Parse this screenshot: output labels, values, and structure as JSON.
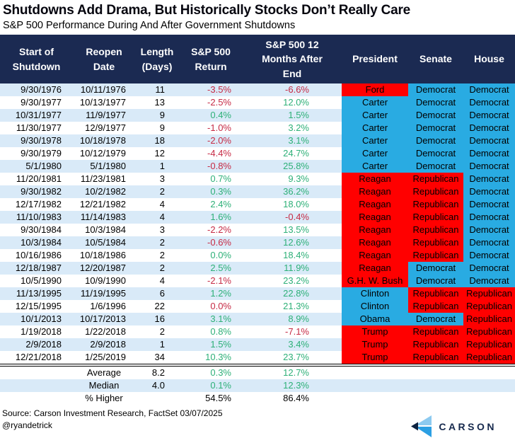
{
  "page": {
    "title": "Shutdowns Add Drama, But Historically Stocks Don’t Really Care",
    "subtitle": "S&P 500 Performance During And After Government Shutdowns",
    "source": "Source: Carson Investment Research, FactSet 03/07/2025",
    "handle": "@ryandetrick",
    "brand": "CARSON"
  },
  "colors": {
    "header_bg": "#1B2A52",
    "row_alt_bg": "#D9EAF8",
    "democrat_blue": "#29ABE2",
    "republican_red": "#FF0000",
    "positive_green": "#2EB078",
    "negative_red": "#C62B45",
    "logo_light": "#8CCAF0",
    "logo_blue": "#2B9FE3",
    "logo_navy": "#0D2240"
  },
  "chart_data": {
    "type": "table",
    "title": "Shutdowns Add Drama, But Historically Stocks Don’t Really Care",
    "subtitle": "S&P 500 Performance During And After Government Shutdowns",
    "columns": [
      "Start of\nShutdown",
      "Reopen\nDate",
      "Length\n(Days)",
      "S&P 500\nReturn",
      "S&P 500 12\nMonths After\nEnd",
      "President",
      "Senate",
      "House"
    ],
    "rows": [
      {
        "start": "9/30/1976",
        "reopen": "10/11/1976",
        "days": "11",
        "return": "-3.5%",
        "return_dir": "down",
        "after": "-6.6%",
        "after_dir": "down",
        "president": "Ford",
        "president_party": "R",
        "senate": "Democrat",
        "senate_party": "D",
        "house": "Democrat",
        "house_party": "D"
      },
      {
        "start": "9/30/1977",
        "reopen": "10/13/1977",
        "days": "13",
        "return": "-2.5%",
        "return_dir": "down",
        "after": "12.0%",
        "after_dir": "up",
        "president": "Carter",
        "president_party": "D",
        "senate": "Democrat",
        "senate_party": "D",
        "house": "Democrat",
        "house_party": "D"
      },
      {
        "start": "10/31/1977",
        "reopen": "11/9/1977",
        "days": "9",
        "return": "0.4%",
        "return_dir": "up",
        "after": "1.5%",
        "after_dir": "up",
        "president": "Carter",
        "president_party": "D",
        "senate": "Democrat",
        "senate_party": "D",
        "house": "Democrat",
        "house_party": "D"
      },
      {
        "start": "11/30/1977",
        "reopen": "12/9/1977",
        "days": "9",
        "return": "-1.0%",
        "return_dir": "down",
        "after": "3.2%",
        "after_dir": "up",
        "president": "Carter",
        "president_party": "D",
        "senate": "Democrat",
        "senate_party": "D",
        "house": "Democrat",
        "house_party": "D"
      },
      {
        "start": "9/30/1978",
        "reopen": "10/18/1978",
        "days": "18",
        "return": "-2.0%",
        "return_dir": "down",
        "after": "3.1%",
        "after_dir": "up",
        "president": "Carter",
        "president_party": "D",
        "senate": "Democrat",
        "senate_party": "D",
        "house": "Democrat",
        "house_party": "D"
      },
      {
        "start": "9/30/1979",
        "reopen": "10/12/1979",
        "days": "12",
        "return": "-4.4%",
        "return_dir": "down",
        "after": "24.7%",
        "after_dir": "up",
        "president": "Carter",
        "president_party": "D",
        "senate": "Democrat",
        "senate_party": "D",
        "house": "Democrat",
        "house_party": "D"
      },
      {
        "start": "5/1/1980",
        "reopen": "5/1/1980",
        "days": "1",
        "return": "-0.8%",
        "return_dir": "down",
        "after": "25.8%",
        "after_dir": "up",
        "president": "Carter",
        "president_party": "D",
        "senate": "Democrat",
        "senate_party": "D",
        "house": "Democrat",
        "house_party": "D"
      },
      {
        "start": "11/20/1981",
        "reopen": "11/23/1981",
        "days": "3",
        "return": "0.7%",
        "return_dir": "up",
        "after": "9.3%",
        "after_dir": "up",
        "president": "Reagan",
        "president_party": "R",
        "senate": "Republican",
        "senate_party": "R",
        "house": "Democrat",
        "house_party": "D"
      },
      {
        "start": "9/30/1982",
        "reopen": "10/2/1982",
        "days": "2",
        "return": "0.3%",
        "return_dir": "up",
        "after": "36.2%",
        "after_dir": "up",
        "president": "Reagan",
        "president_party": "R",
        "senate": "Republican",
        "senate_party": "R",
        "house": "Democrat",
        "house_party": "D"
      },
      {
        "start": "12/17/1982",
        "reopen": "12/21/1982",
        "days": "4",
        "return": "2.4%",
        "return_dir": "up",
        "after": "18.0%",
        "after_dir": "up",
        "president": "Reagan",
        "president_party": "R",
        "senate": "Republican",
        "senate_party": "R",
        "house": "Democrat",
        "house_party": "D"
      },
      {
        "start": "11/10/1983",
        "reopen": "11/14/1983",
        "days": "4",
        "return": "1.6%",
        "return_dir": "up",
        "after": "-0.4%",
        "after_dir": "down",
        "president": "Reagan",
        "president_party": "R",
        "senate": "Republican",
        "senate_party": "R",
        "house": "Democrat",
        "house_party": "D"
      },
      {
        "start": "9/30/1984",
        "reopen": "10/3/1984",
        "days": "3",
        "return": "-2.2%",
        "return_dir": "down",
        "after": "13.5%",
        "after_dir": "up",
        "president": "Reagan",
        "president_party": "R",
        "senate": "Republican",
        "senate_party": "R",
        "house": "Democrat",
        "house_party": "D"
      },
      {
        "start": "10/3/1984",
        "reopen": "10/5/1984",
        "days": "2",
        "return": "-0.6%",
        "return_dir": "down",
        "after": "12.6%",
        "after_dir": "up",
        "president": "Reagan",
        "president_party": "R",
        "senate": "Republican",
        "senate_party": "R",
        "house": "Democrat",
        "house_party": "D"
      },
      {
        "start": "10/16/1986",
        "reopen": "10/18/1986",
        "days": "2",
        "return": "0.0%",
        "return_dir": "up",
        "after": "18.4%",
        "after_dir": "up",
        "president": "Reagan",
        "president_party": "R",
        "senate": "Republican",
        "senate_party": "R",
        "house": "Democrat",
        "house_party": "D"
      },
      {
        "start": "12/18/1987",
        "reopen": "12/20/1987",
        "days": "2",
        "return": "2.5%",
        "return_dir": "up",
        "after": "11.9%",
        "after_dir": "up",
        "president": "Reagan",
        "president_party": "R",
        "senate": "Democrat",
        "senate_party": "D",
        "house": "Democrat",
        "house_party": "D"
      },
      {
        "start": "10/5/1990",
        "reopen": "10/9/1990",
        "days": "4",
        "return": "-2.1%",
        "return_dir": "down",
        "after": "23.2%",
        "after_dir": "up",
        "president": "G.H. W. Bush",
        "president_party": "R",
        "senate": "Democrat",
        "senate_party": "D",
        "house": "Democrat",
        "house_party": "D"
      },
      {
        "start": "11/13/1995",
        "reopen": "11/19/1995",
        "days": "6",
        "return": "1.2%",
        "return_dir": "up",
        "after": "22.8%",
        "after_dir": "up",
        "president": "Clinton",
        "president_party": "D",
        "senate": "Republican",
        "senate_party": "R",
        "house": "Republican",
        "house_party": "R"
      },
      {
        "start": "12/15/1995",
        "reopen": "1/6/1996",
        "days": "22",
        "return": "0.0%",
        "return_dir": "down",
        "after": "21.3%",
        "after_dir": "up",
        "president": "Clinton",
        "president_party": "D",
        "senate": "Republican",
        "senate_party": "R",
        "house": "Republican",
        "house_party": "R"
      },
      {
        "start": "10/1/2013",
        "reopen": "10/17/2013",
        "days": "16",
        "return": "3.1%",
        "return_dir": "up",
        "after": "8.9%",
        "after_dir": "up",
        "president": "Obama",
        "president_party": "D",
        "senate": "Democrat",
        "senate_party": "D",
        "house": "Republican",
        "house_party": "R"
      },
      {
        "start": "1/19/2018",
        "reopen": "1/22/2018",
        "days": "2",
        "return": "0.8%",
        "return_dir": "up",
        "after": "-7.1%",
        "after_dir": "down",
        "president": "Trump",
        "president_party": "R",
        "senate": "Republican",
        "senate_party": "R",
        "house": "Republican",
        "house_party": "R"
      },
      {
        "start": "2/9/2018",
        "reopen": "2/9/2018",
        "days": "1",
        "return": "1.5%",
        "return_dir": "up",
        "after": "3.4%",
        "after_dir": "up",
        "president": "Trump",
        "president_party": "R",
        "senate": "Republican",
        "senate_party": "R",
        "house": "Republican",
        "house_party": "R"
      },
      {
        "start": "12/21/2018",
        "reopen": "1/25/2019",
        "days": "34",
        "return": "10.3%",
        "return_dir": "up",
        "after": "23.7%",
        "after_dir": "up",
        "president": "Trump",
        "president_party": "R",
        "senate": "Republican",
        "senate_party": "R",
        "house": "Republican",
        "house_party": "R"
      }
    ],
    "summary_rows": [
      {
        "label": "Average",
        "days": "8.2",
        "return": "0.3%",
        "after": "12.7%",
        "value_style": "green"
      },
      {
        "label": "Median",
        "days": "4.0",
        "return": "0.1%",
        "after": "12.3%",
        "value_style": "green"
      },
      {
        "label": "% Higher",
        "days": "",
        "return": "54.5%",
        "after": "86.4%",
        "value_style": "black"
      }
    ]
  }
}
